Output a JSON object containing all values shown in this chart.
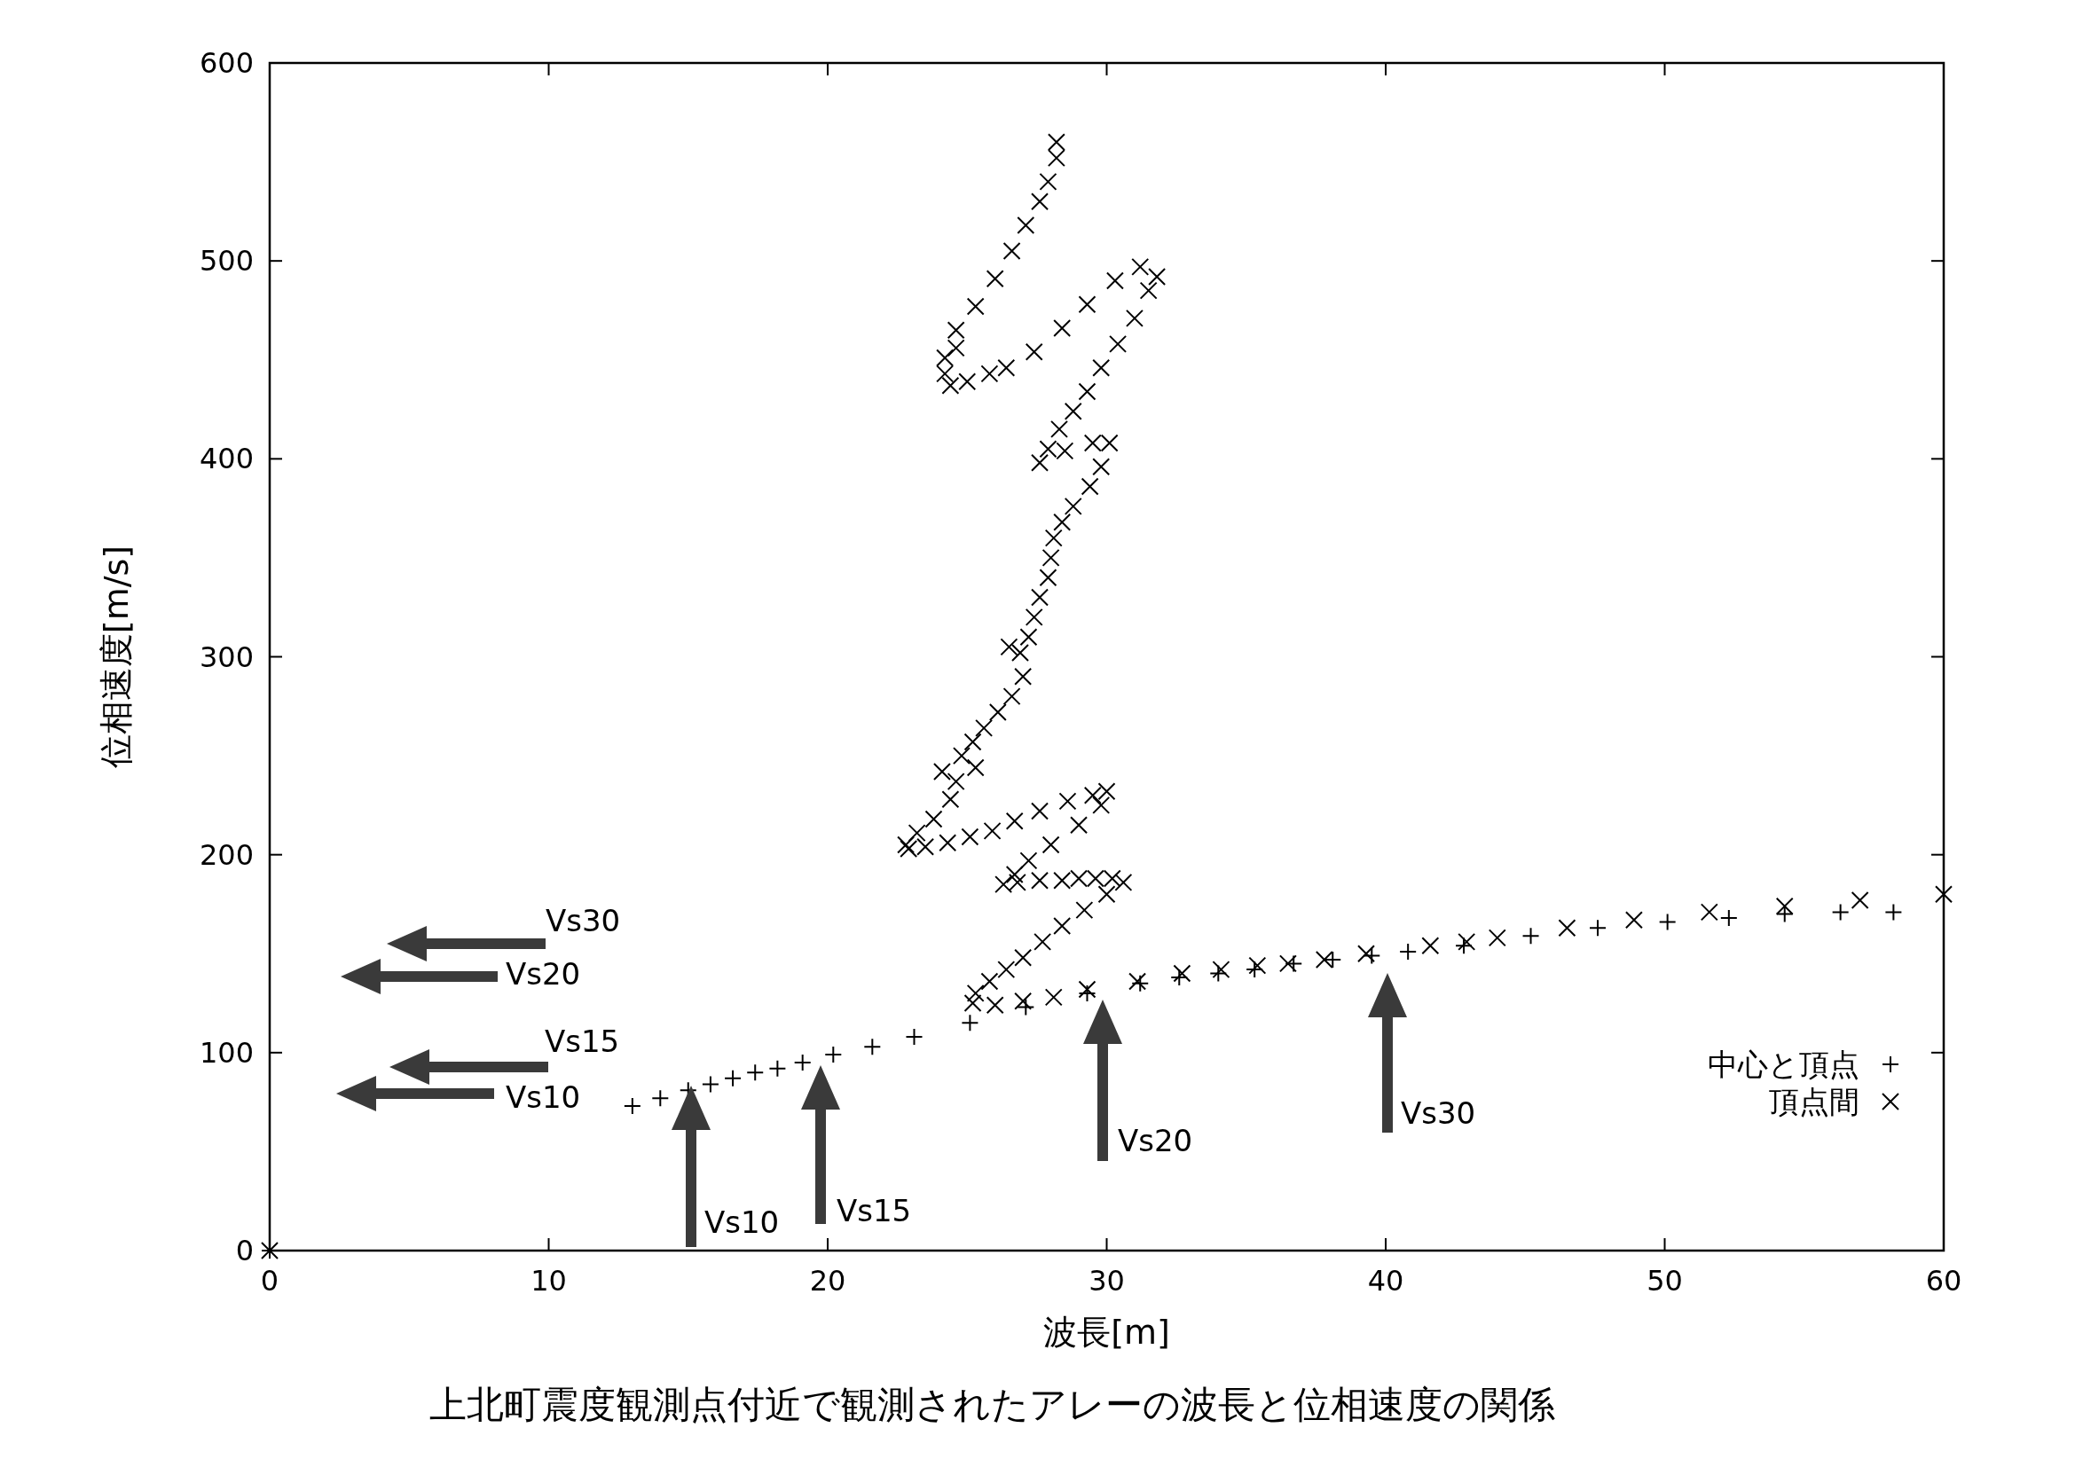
{
  "chart_data": {
    "type": "scatter",
    "title": "上北町震度観測点付近で観測されたアレーの波長と位相速度の関係",
    "xlabel": "波長[m]",
    "ylabel": "位相速度[m/s]",
    "xlim": [
      0,
      60
    ],
    "ylim": [
      0,
      600
    ],
    "xticks": [
      0,
      10,
      20,
      30,
      40,
      50,
      60
    ],
    "yticks": [
      0,
      100,
      200,
      300,
      400,
      500,
      600
    ],
    "grid": false,
    "legend": "bottom right",
    "series": [
      {
        "name": "中心と頂点",
        "color": "#000000",
        "marker": "plus",
        "x": [
          0,
          13,
          14,
          15,
          15.8,
          16.6,
          17.4,
          18.2,
          19.1,
          20.2,
          21.6,
          23.1,
          25.1,
          27.1,
          29.3,
          31.2,
          32.6,
          34.0,
          35.3,
          36.7,
          38.1,
          39.5,
          40.8,
          42.8,
          45.2,
          47.6,
          50.1,
          52.3,
          54.3,
          56.3,
          58.2
        ],
        "values": [
          0,
          73,
          77,
          81,
          84,
          87,
          90,
          92,
          95,
          99,
          103,
          108,
          115,
          123,
          130,
          135,
          138,
          140,
          142,
          145,
          147,
          149,
          151,
          154,
          159,
          163,
          166,
          168,
          170,
          171,
          171
        ]
      },
      {
        "name": "頂点間",
        "color": "#000000",
        "marker": "cross",
        "x": [
          0,
          25.2,
          26.0,
          27.0,
          28.1,
          29.3,
          31.1,
          32.7,
          34.1,
          35.4,
          36.5,
          37.8,
          39.3,
          41.6,
          42.9,
          44,
          46.5,
          48.9,
          51.6,
          54.3,
          57,
          60,
          25.3,
          25.8,
          26.4,
          27.0,
          27.7,
          28.4,
          29.2,
          30.0,
          30.6,
          30.2,
          29.6,
          29.0,
          28.4,
          27.6,
          26.8,
          26.3,
          26.7,
          27.2,
          28,
          29,
          29.8,
          30.0,
          29.5,
          28.6,
          27.6,
          26.7,
          25.9,
          25.1,
          24.3,
          23.5,
          22.9,
          22.8,
          23.2,
          23.8,
          24.4,
          24.6,
          24.1,
          25.3,
          24.8,
          25.2,
          25.6,
          26.1,
          26.6,
          27.0,
          26.5,
          26.9,
          27.2,
          27.4,
          27.6,
          27.9,
          28.0,
          28.1,
          28.4,
          28.8,
          29.4,
          29.8,
          30.1,
          29.5,
          28.5,
          27.6,
          27.9,
          28.3,
          28.8,
          29.3,
          29.8,
          30.4,
          31,
          31.5,
          31.8,
          31.2,
          30.3,
          29.3,
          28.4,
          27.4,
          26.4,
          25.8,
          25.0,
          24.4,
          24.2,
          24.2,
          24.6,
          24.6,
          25.3,
          26.0,
          26.6,
          27.1,
          27.6,
          27.9,
          28.2,
          28.2
        ],
        "values": [
          0,
          125,
          124,
          126,
          128,
          132,
          136,
          140,
          142,
          144,
          145,
          147,
          150,
          154,
          156,
          158,
          163,
          167,
          171,
          174,
          177,
          180,
          130,
          136,
          142,
          148,
          156,
          164,
          172,
          180,
          186,
          188,
          188,
          188,
          187,
          187,
          186,
          185,
          190,
          197,
          205,
          215,
          225,
          232,
          230,
          227,
          222,
          217,
          212,
          209,
          206,
          204,
          203,
          205,
          211,
          218,
          228,
          237,
          242,
          244,
          250,
          257,
          264,
          272,
          280,
          290,
          305,
          302,
          310,
          320,
          330,
          340,
          350,
          360,
          368,
          376,
          386,
          396,
          408,
          408,
          404,
          398,
          405,
          415,
          424,
          434,
          446,
          458,
          471,
          485,
          492,
          497,
          490,
          478,
          466,
          454,
          446,
          443,
          439,
          437,
          443,
          451,
          456,
          465,
          477,
          491,
          505,
          518,
          530,
          540,
          552,
          560
        ]
      }
    ],
    "annotations": [
      "Vs30",
      "Vs20",
      "Vs15",
      "Vs10",
      "Vs10",
      "Vs15",
      "Vs20",
      "Vs30"
    ]
  }
}
